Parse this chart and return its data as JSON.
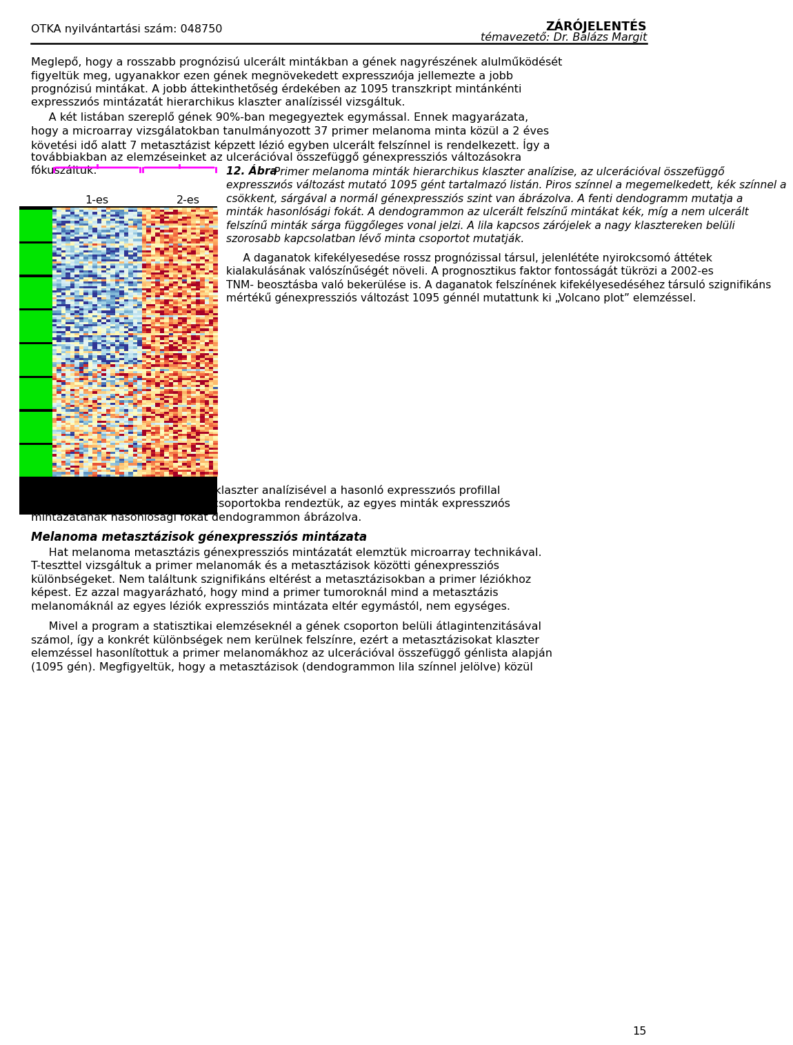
{
  "header_left": "OTKA nyilvántartási szám: 048750",
  "header_right_bold": "ZÁRÓJELENTÉS",
  "header_right_italic": "témavezető: Dr. Balázs Margit",
  "page_number": "15",
  "label_1es": "1-es",
  "label_2es": "2-es",
  "fig_caption_bold": "12. Ábra",
  "para1_lines": [
    "Meglepő, hogy a rosszabb prогnózisú ulcerált mintákban a gének nagyrészének alulműködését",
    "figyeltük meg, ugyanakkor ezen gének megnövekedett expresszиója jellemezte a jobb",
    "prognózisú mintákat. A jobb áttekinthetőség érdekében az 1095 transzkript mintánkénti",
    "expresszиós mintázatát hierarchikus klaszter analízisçel vizsgáltuk."
  ],
  "para2_lines": [
    "     A két listában szereplő gének 90%-ban megegyeztek egymással. Ennek magyarázata,",
    "hogy a microarray vizsgálatokban tanulmányozott 37 primer melanoma minta közül a 2 éves",
    "követési idő alatt 7 metasztázist képzett lézió egyben ulcerált felszínnel is rendelkezett. Így a",
    "továbbiakban az elemzéseinket az ulcerációval összefüggő génexpressziós változásokra",
    "fókuszáltuk."
  ],
  "cap_line1_rest": " Primer melanoma minták hierarchikus klaszter analízise, az ulcerációval összefüggő",
  "cap_lines": [
    "expresszиós változást mutató 1095 gént tartalmazó listán. Piros színnel a megemelkedett, kék színnel a",
    "csökkent, sárgával a normál génexpressziós szint van ábrázolva. A fenti dendogramm mutatja a",
    "minták hasonlósági fokát. A dendogrammon az ulcerált felszínű mintákat kék, míg a nem ulcerált",
    "felszínű minták sárga függőleges vonal jelzi. A lila kapcsos zárójelek a nagy klasztereken belüli",
    "szorosabb kapcsolatban lévő minta csoportot mutatják."
  ],
  "fig_para2_lines": [
    "     A daganatok kifekélyesedése rossz prognózissal társul, jelenlététe nyirokcsomó áttétek",
    "kialakulásának valószínűségét növeli. A prognosztikus faktor fontosságát tükrözi a 2002-es",
    "TNM- beosztásba való bekerülése is. A daganatok felszínének kifekélyesedéséhez társuló szignifikáns",
    "mértékű génexpressziós változást 1095 génnél mutattunk ki „Volcano plot” elemzéssel."
  ],
  "para3_lines": [
    "A génlista valamint a daganatok klaszter analízisével a hasonló expresszиós profillal",
    "rendelkező géneket és mintákat csoportokba rendeztük, az egyes minták expresszиós",
    "mintázatának hasonlósági fokát dendogrammon ábrázolva."
  ],
  "section_heading": "Melanoma metasztázisok génexpressziós mintázata",
  "para4_lines": [
    "     Hat melanoma metasztázis génexpressziós mintázatát elemztük microarray technikával.",
    "T-teszttel vizsgáltuk a primer melanomák és a metasztázisok közötti génexpressziós",
    "különbségeket. Nem találtunk szignifikáns eltérést a metasztázisokban a primer léziókhoz",
    "képest. Ez azzal magyarázható, hogy mind a primer tumoroknál mind a metasztázis",
    "melanomáknál az egyes léziók expressziós mintázata eltér egymástól, nem egységes."
  ],
  "para5_lines": [
    "     Mivel a program a statisztikai elemzéseknél a gének csoporton belüli átlagintenzitásával",
    "számol, így a konkrét különbségek nem kerülnek felszínre, ezért a metasztázisokat klaszter",
    "elemzéssel hasonlítottuk a primer melanomákhoz az ulcerációval összefüggő génlista alapján",
    "(1095 gén). Megfigyeltük, hogy a metasztázisok (dendogrammon lila színnel jelölve) közül"
  ]
}
